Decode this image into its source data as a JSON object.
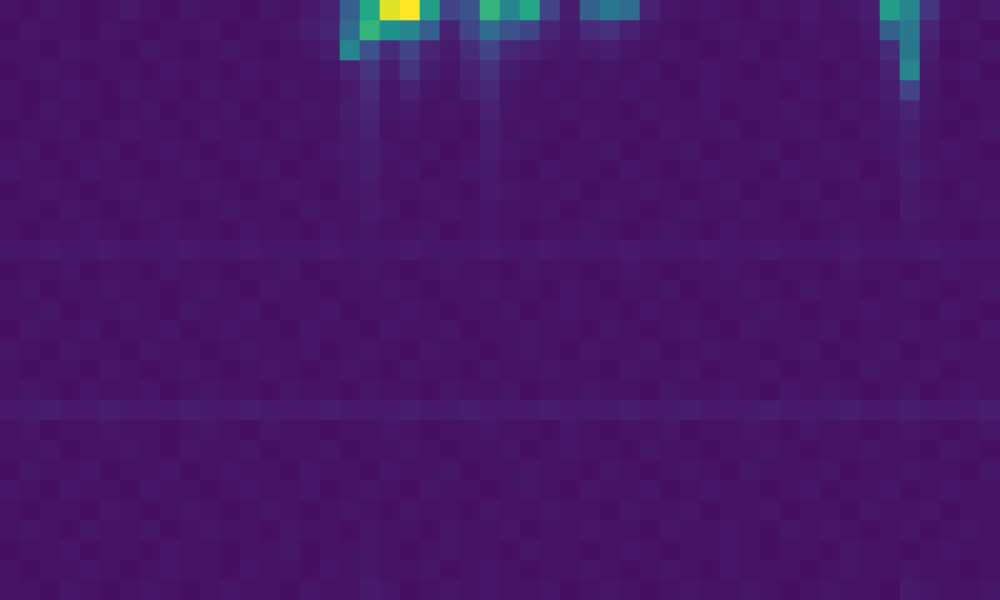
{
  "chart_data": {
    "type": "heatmap",
    "grid": false,
    "tick_labels": false,
    "zlim": [
      0,
      100
    ],
    "cells": [
      [
        5,
        4,
        6,
        5,
        4,
        5,
        7,
        5,
        4,
        6,
        5,
        5,
        4,
        6,
        5,
        7,
        9,
        30,
        60,
        95,
        100,
        55,
        20,
        25,
        65,
        45,
        60,
        20,
        8,
        30,
        40,
        35,
        9,
        6,
        5,
        6,
        5,
        4,
        6,
        5,
        7,
        5,
        6,
        8,
        55,
        45,
        15,
        6,
        5,
        7
      ],
      [
        4,
        6,
        5,
        5,
        4,
        6,
        5,
        4,
        5,
        5,
        6,
        4,
        5,
        5,
        6,
        8,
        10,
        35,
        65,
        50,
        45,
        30,
        9,
        20,
        35,
        25,
        20,
        10,
        7,
        12,
        14,
        9,
        6,
        5,
        4,
        5,
        6,
        5,
        5,
        4,
        6,
        5,
        5,
        7,
        30,
        40,
        10,
        5,
        6,
        4
      ],
      [
        5,
        5,
        4,
        6,
        5,
        5,
        4,
        6,
        5,
        4,
        5,
        6,
        5,
        4,
        5,
        6,
        8,
        45,
        25,
        12,
        20,
        10,
        7,
        12,
        20,
        11,
        9,
        7,
        6,
        7,
        8,
        6,
        5,
        6,
        5,
        4,
        5,
        6,
        4,
        5,
        5,
        6,
        5,
        6,
        12,
        40,
        8,
        4,
        5,
        6
      ],
      [
        4,
        5,
        6,
        5,
        4,
        5,
        5,
        4,
        6,
        5,
        5,
        4,
        6,
        5,
        5,
        5,
        6,
        9,
        15,
        8,
        15,
        8,
        6,
        9,
        14,
        8,
        6,
        5,
        6,
        5,
        6,
        5,
        6,
        4,
        5,
        6,
        5,
        4,
        5,
        6,
        5,
        4,
        6,
        5,
        9,
        45,
        7,
        5,
        6,
        4
      ],
      [
        5,
        4,
        5,
        6,
        5,
        4,
        6,
        5,
        5,
        4,
        6,
        5,
        5,
        4,
        6,
        5,
        5,
        7,
        12,
        6,
        9,
        6,
        5,
        8,
        11,
        6,
        5,
        6,
        5,
        6,
        5,
        6,
        5,
        5,
        4,
        6,
        5,
        5,
        5,
        4,
        6,
        5,
        5,
        6,
        8,
        20,
        6,
        4,
        5,
        5
      ],
      [
        5,
        4,
        6,
        5,
        5,
        4,
        5,
        6,
        4,
        5,
        5,
        6,
        4,
        5,
        5,
        6,
        5,
        8,
        10,
        6,
        7,
        5,
        6,
        5,
        9,
        6,
        5,
        5,
        6,
        5,
        5,
        4,
        6,
        5,
        5,
        6,
        4,
        5,
        5,
        6,
        5,
        4,
        6,
        5,
        7,
        10,
        6,
        5,
        4,
        5
      ],
      [
        4,
        5,
        5,
        6,
        4,
        5,
        6,
        5,
        5,
        4,
        6,
        5,
        5,
        4,
        6,
        5,
        5,
        7,
        9,
        5,
        6,
        5,
        5,
        4,
        8,
        5,
        6,
        5,
        4,
        6,
        5,
        5,
        4,
        6,
        5,
        5,
        6,
        4,
        5,
        5,
        6,
        5,
        4,
        6,
        6,
        8,
        5,
        4,
        5,
        6
      ],
      [
        5,
        6,
        4,
        5,
        5,
        6,
        4,
        5,
        6,
        5,
        4,
        5,
        6,
        5,
        5,
        4,
        6,
        7,
        8,
        6,
        5,
        6,
        4,
        5,
        8,
        6,
        5,
        4,
        5,
        5,
        6,
        4,
        5,
        5,
        6,
        4,
        5,
        5,
        6,
        4,
        5,
        6,
        5,
        5,
        6,
        7,
        5,
        6,
        5,
        4
      ],
      [
        6,
        5,
        5,
        4,
        6,
        5,
        5,
        4,
        5,
        6,
        5,
        4,
        5,
        6,
        4,
        5,
        5,
        6,
        8,
        5,
        6,
        4,
        5,
        6,
        7,
        5,
        4,
        6,
        5,
        5,
        4,
        6,
        5,
        4,
        5,
        6,
        5,
        5,
        4,
        6,
        5,
        5,
        6,
        4,
        5,
        8,
        6,
        5,
        5,
        5
      ],
      [
        4,
        5,
        6,
        5,
        4,
        5,
        6,
        5,
        5,
        5,
        6,
        5,
        4,
        5,
        6,
        5,
        4,
        6,
        7,
        5,
        5,
        6,
        5,
        4,
        7,
        6,
        5,
        5,
        6,
        4,
        5,
        5,
        6,
        5,
        4,
        5,
        6,
        4,
        5,
        5,
        6,
        4,
        5,
        6,
        5,
        7,
        5,
        4,
        6,
        5
      ],
      [
        5,
        5,
        4,
        6,
        5,
        4,
        5,
        6,
        5,
        4,
        5,
        6,
        5,
        5,
        4,
        6,
        5,
        5,
        7,
        6,
        4,
        5,
        6,
        5,
        6,
        5,
        5,
        6,
        4,
        5,
        6,
        5,
        4,
        5,
        6,
        5,
        5,
        6,
        5,
        4,
        5,
        6,
        5,
        5,
        4,
        7,
        6,
        5,
        5,
        6
      ],
      [
        5,
        4,
        5,
        5,
        6,
        5,
        4,
        5,
        6,
        5,
        5,
        4,
        6,
        5,
        5,
        4,
        6,
        5,
        6,
        5,
        5,
        6,
        4,
        5,
        6,
        5,
        4,
        5,
        5,
        6,
        5,
        4,
        5,
        6,
        5,
        4,
        6,
        5,
        5,
        5,
        4,
        5,
        6,
        5,
        5,
        6,
        5,
        5,
        4,
        5
      ],
      [
        6,
        6,
        7,
        6,
        6,
        7,
        6,
        6,
        6,
        7,
        6,
        6,
        7,
        6,
        6,
        6,
        7,
        6,
        6,
        6,
        7,
        6,
        6,
        6,
        7,
        6,
        6,
        7,
        6,
        6,
        6,
        7,
        6,
        6,
        6,
        7,
        6,
        6,
        7,
        6,
        6,
        6,
        7,
        6,
        6,
        6,
        7,
        6,
        6,
        6
      ],
      [
        4,
        5,
        5,
        6,
        4,
        5,
        5,
        4,
        6,
        5,
        5,
        4,
        5,
        5,
        6,
        4,
        5,
        5,
        6,
        5,
        4,
        5,
        6,
        5,
        5,
        4,
        6,
        5,
        5,
        4,
        5,
        6,
        5,
        4,
        5,
        5,
        6,
        5,
        4,
        5,
        5,
        4,
        6,
        5,
        5,
        4,
        5,
        6,
        5,
        5
      ],
      [
        5,
        6,
        4,
        5,
        5,
        6,
        5,
        5,
        4,
        5,
        6,
        5,
        4,
        6,
        5,
        5,
        4,
        5,
        5,
        6,
        5,
        4,
        5,
        5,
        6,
        5,
        5,
        4,
        6,
        5,
        4,
        5,
        5,
        6,
        4,
        5,
        5,
        6,
        5,
        4,
        6,
        5,
        5,
        4,
        5,
        6,
        5,
        4,
        5,
        6
      ],
      [
        5,
        5,
        6,
        4,
        5,
        5,
        6,
        5,
        4,
        6,
        5,
        5,
        6,
        4,
        5,
        5,
        6,
        4,
        5,
        5,
        6,
        5,
        4,
        5,
        5,
        6,
        4,
        5,
        6,
        5,
        5,
        4,
        6,
        5,
        5,
        4,
        5,
        5,
        6,
        5,
        4,
        5,
        5,
        6,
        5,
        5,
        4,
        6,
        5,
        4
      ],
      [
        4,
        6,
        5,
        5,
        6,
        4,
        5,
        5,
        6,
        4,
        5,
        6,
        5,
        5,
        4,
        6,
        5,
        5,
        4,
        6,
        5,
        5,
        6,
        4,
        5,
        5,
        6,
        5,
        5,
        4,
        6,
        5,
        4,
        5,
        6,
        5,
        4,
        6,
        5,
        5,
        5,
        6,
        4,
        5,
        5,
        6,
        5,
        5,
        4,
        6
      ],
      [
        6,
        5,
        4,
        6,
        5,
        5,
        4,
        6,
        5,
        5,
        4,
        5,
        6,
        5,
        5,
        6,
        4,
        5,
        6,
        5,
        4,
        6,
        5,
        5,
        4,
        5,
        6,
        5,
        4,
        6,
        5,
        5,
        6,
        4,
        5,
        6,
        5,
        5,
        4,
        5,
        6,
        4,
        5,
        5,
        6,
        4,
        5,
        6,
        5,
        5
      ],
      [
        5,
        4,
        5,
        5,
        4,
        6,
        5,
        4,
        5,
        6,
        5,
        4,
        5,
        6,
        5,
        4,
        5,
        6,
        5,
        4,
        6,
        5,
        5,
        4,
        6,
        5,
        5,
        6,
        5,
        5,
        4,
        6,
        5,
        5,
        6,
        4,
        5,
        5,
        6,
        4,
        5,
        5,
        4,
        6,
        5,
        5,
        6,
        4,
        5,
        5
      ],
      [
        5,
        6,
        5,
        4,
        6,
        5,
        5,
        6,
        4,
        5,
        6,
        5,
        5,
        4,
        6,
        5,
        5,
        4,
        6,
        5,
        5,
        4,
        6,
        5,
        5,
        6,
        4,
        5,
        5,
        6,
        5,
        5,
        4,
        6,
        5,
        5,
        6,
        5,
        4,
        6,
        5,
        6,
        5,
        4,
        5,
        6,
        4,
        5,
        6,
        5
      ],
      [
        7,
        7,
        8,
        7,
        7,
        8,
        7,
        7,
        7,
        8,
        7,
        7,
        8,
        7,
        7,
        7,
        8,
        7,
        7,
        7,
        8,
        7,
        7,
        8,
        7,
        7,
        7,
        8,
        7,
        7,
        7,
        8,
        7,
        7,
        8,
        7,
        7,
        7,
        8,
        7,
        7,
        7,
        8,
        7,
        7,
        8,
        7,
        7,
        7,
        8
      ],
      [
        5,
        6,
        4,
        5,
        5,
        6,
        5,
        5,
        4,
        5,
        6,
        5,
        4,
        6,
        5,
        5,
        4,
        5,
        5,
        6,
        5,
        4,
        5,
        5,
        6,
        5,
        5,
        4,
        6,
        5,
        4,
        5,
        5,
        6,
        4,
        5,
        5,
        6,
        5,
        4,
        6,
        5,
        5,
        4,
        5,
        6,
        5,
        4,
        5,
        6
      ],
      [
        5,
        5,
        6,
        4,
        5,
        5,
        6,
        5,
        4,
        6,
        5,
        5,
        6,
        4,
        5,
        5,
        6,
        4,
        5,
        5,
        6,
        5,
        4,
        5,
        5,
        6,
        4,
        5,
        6,
        5,
        5,
        4,
        6,
        5,
        5,
        4,
        5,
        5,
        6,
        5,
        4,
        5,
        5,
        6,
        5,
        5,
        4,
        6,
        5,
        4
      ],
      [
        4,
        6,
        5,
        5,
        6,
        4,
        5,
        5,
        6,
        4,
        5,
        6,
        5,
        5,
        4,
        6,
        5,
        5,
        4,
        6,
        5,
        5,
        6,
        4,
        5,
        5,
        6,
        5,
        5,
        4,
        6,
        5,
        4,
        5,
        6,
        5,
        4,
        6,
        5,
        5,
        5,
        6,
        4,
        5,
        5,
        6,
        5,
        5,
        4,
        6
      ],
      [
        6,
        5,
        4,
        6,
        5,
        5,
        4,
        6,
        5,
        5,
        4,
        5,
        6,
        5,
        5,
        6,
        4,
        5,
        6,
        5,
        4,
        6,
        5,
        5,
        4,
        5,
        6,
        5,
        4,
        6,
        5,
        5,
        6,
        4,
        5,
        6,
        5,
        5,
        4,
        5,
        6,
        4,
        5,
        5,
        6,
        4,
        5,
        6,
        5,
        5
      ],
      [
        5,
        4,
        5,
        5,
        4,
        6,
        5,
        4,
        5,
        6,
        5,
        4,
        5,
        6,
        5,
        4,
        5,
        6,
        5,
        4,
        6,
        5,
        5,
        4,
        6,
        5,
        5,
        6,
        5,
        5,
        4,
        6,
        5,
        5,
        6,
        4,
        5,
        5,
        6,
        4,
        5,
        5,
        4,
        6,
        5,
        5,
        6,
        4,
        5,
        5
      ],
      [
        5,
        6,
        5,
        4,
        6,
        5,
        5,
        6,
        4,
        5,
        6,
        5,
        5,
        4,
        6,
        5,
        5,
        4,
        6,
        5,
        5,
        4,
        6,
        5,
        5,
        6,
        4,
        5,
        5,
        6,
        5,
        5,
        4,
        6,
        5,
        5,
        6,
        5,
        4,
        6,
        5,
        6,
        5,
        4,
        5,
        6,
        4,
        5,
        6,
        5
      ],
      [
        4,
        5,
        5,
        6,
        4,
        5,
        5,
        4,
        6,
        5,
        5,
        4,
        5,
        5,
        6,
        4,
        5,
        5,
        6,
        5,
        4,
        5,
        6,
        5,
        5,
        4,
        6,
        5,
        5,
        4,
        5,
        6,
        5,
        4,
        5,
        5,
        6,
        5,
        4,
        5,
        5,
        4,
        6,
        5,
        5,
        4,
        5,
        6,
        5,
        5
      ],
      [
        5,
        4,
        5,
        5,
        6,
        5,
        4,
        5,
        6,
        5,
        5,
        4,
        6,
        5,
        5,
        4,
        6,
        5,
        6,
        5,
        5,
        6,
        4,
        5,
        6,
        5,
        4,
        5,
        5,
        6,
        5,
        4,
        5,
        6,
        5,
        4,
        6,
        5,
        5,
        5,
        4,
        5,
        6,
        5,
        5,
        6,
        5,
        5,
        4,
        5
      ],
      [
        5,
        5,
        4,
        6,
        5,
        4,
        5,
        6,
        5,
        4,
        5,
        6,
        5,
        5,
        4,
        6,
        5,
        5,
        7,
        6,
        4,
        5,
        6,
        5,
        6,
        5,
        5,
        6,
        4,
        5,
        6,
        5,
        4,
        5,
        6,
        5,
        5,
        6,
        5,
        4,
        5,
        6,
        5,
        5,
        4,
        7,
        6,
        5,
        5,
        6
      ]
    ]
  }
}
